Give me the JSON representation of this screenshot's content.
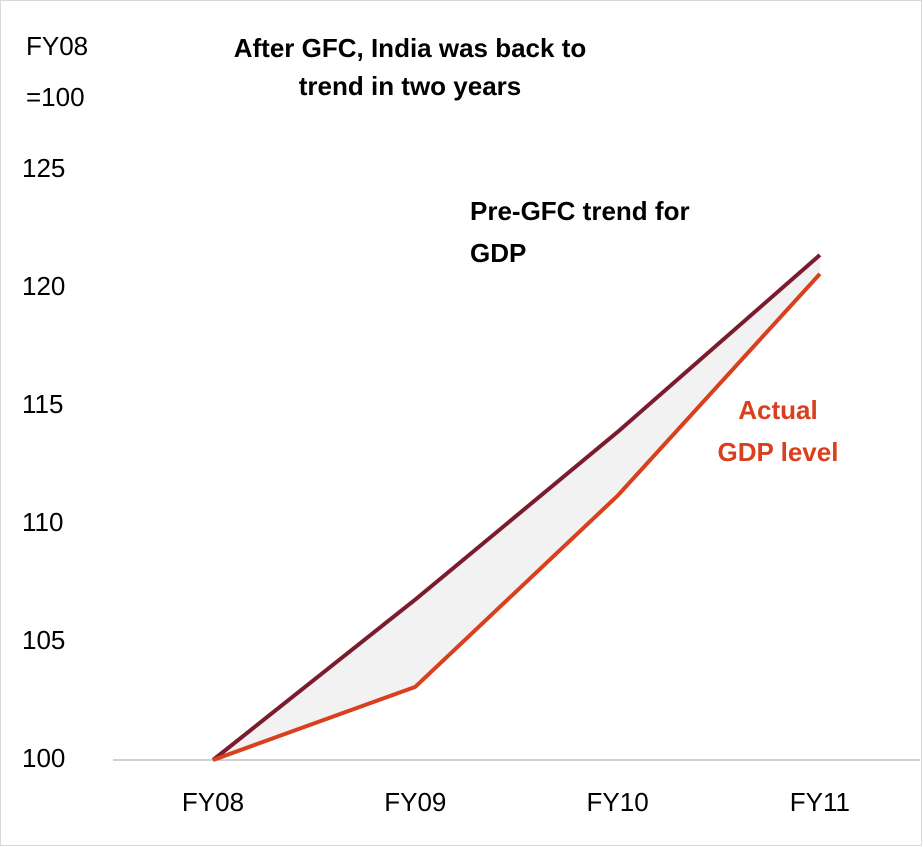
{
  "chart_data": {
    "type": "line",
    "title": [
      "After GFC, India was back to",
      "trend in two years"
    ],
    "y_label": [
      "FY08",
      "=100"
    ],
    "categories": [
      "FY08",
      "FY09",
      "FY10",
      "FY11"
    ],
    "series": [
      {
        "name": "Pre-GFC trend for GDP",
        "label_lines": [
          "Pre-GFC trend for",
          "GDP"
        ],
        "color": "#7b1c2e",
        "values": [
          100,
          106.8,
          113.9,
          121.4
        ]
      },
      {
        "name": "Actual GDP level",
        "label_lines": [
          "Actual",
          "GDP level"
        ],
        "color": "#d9401e",
        "values": [
          100,
          103.1,
          111.2,
          120.6
        ]
      }
    ],
    "ylim": [
      100,
      125
    ],
    "yticks": [
      100,
      105,
      110,
      115,
      120,
      125
    ],
    "grid": false
  }
}
